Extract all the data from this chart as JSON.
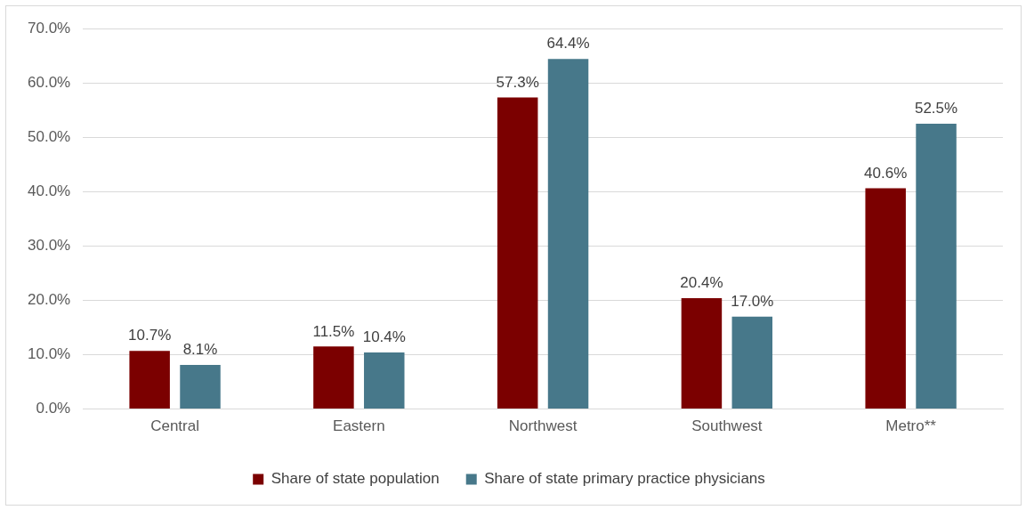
{
  "chart_data": {
    "type": "bar",
    "categories": [
      "Central",
      "Eastern",
      "Northwest",
      "Southwest",
      "Metro**"
    ],
    "series": [
      {
        "name": "Share of state population",
        "color": "#7b0000",
        "values": [
          10.7,
          11.5,
          57.3,
          20.4,
          40.6
        ],
        "value_labels": [
          "10.7%",
          "11.5%",
          "57.3%",
          "20.4%",
          "40.6%"
        ]
      },
      {
        "name": "Share of state primary practice physicians",
        "color": "#47788a",
        "values": [
          8.1,
          10.4,
          64.4,
          17.0,
          52.5
        ],
        "value_labels": [
          "8.1%",
          "10.4%",
          "64.4%",
          "17.0%",
          "52.5%"
        ]
      }
    ],
    "ylim": [
      0,
      70
    ],
    "yticks": [
      {
        "value": 0,
        "label": "0.0%"
      },
      {
        "value": 10,
        "label": "10.0%"
      },
      {
        "value": 20,
        "label": "20.0%"
      },
      {
        "value": 30,
        "label": "30.0%"
      },
      {
        "value": 40,
        "label": "40.0%"
      },
      {
        "value": 50,
        "label": "50.0%"
      },
      {
        "value": 60,
        "label": "60.0%"
      },
      {
        "value": 70,
        "label": "70.0%"
      }
    ],
    "grid": "y",
    "legend": "bottom"
  }
}
